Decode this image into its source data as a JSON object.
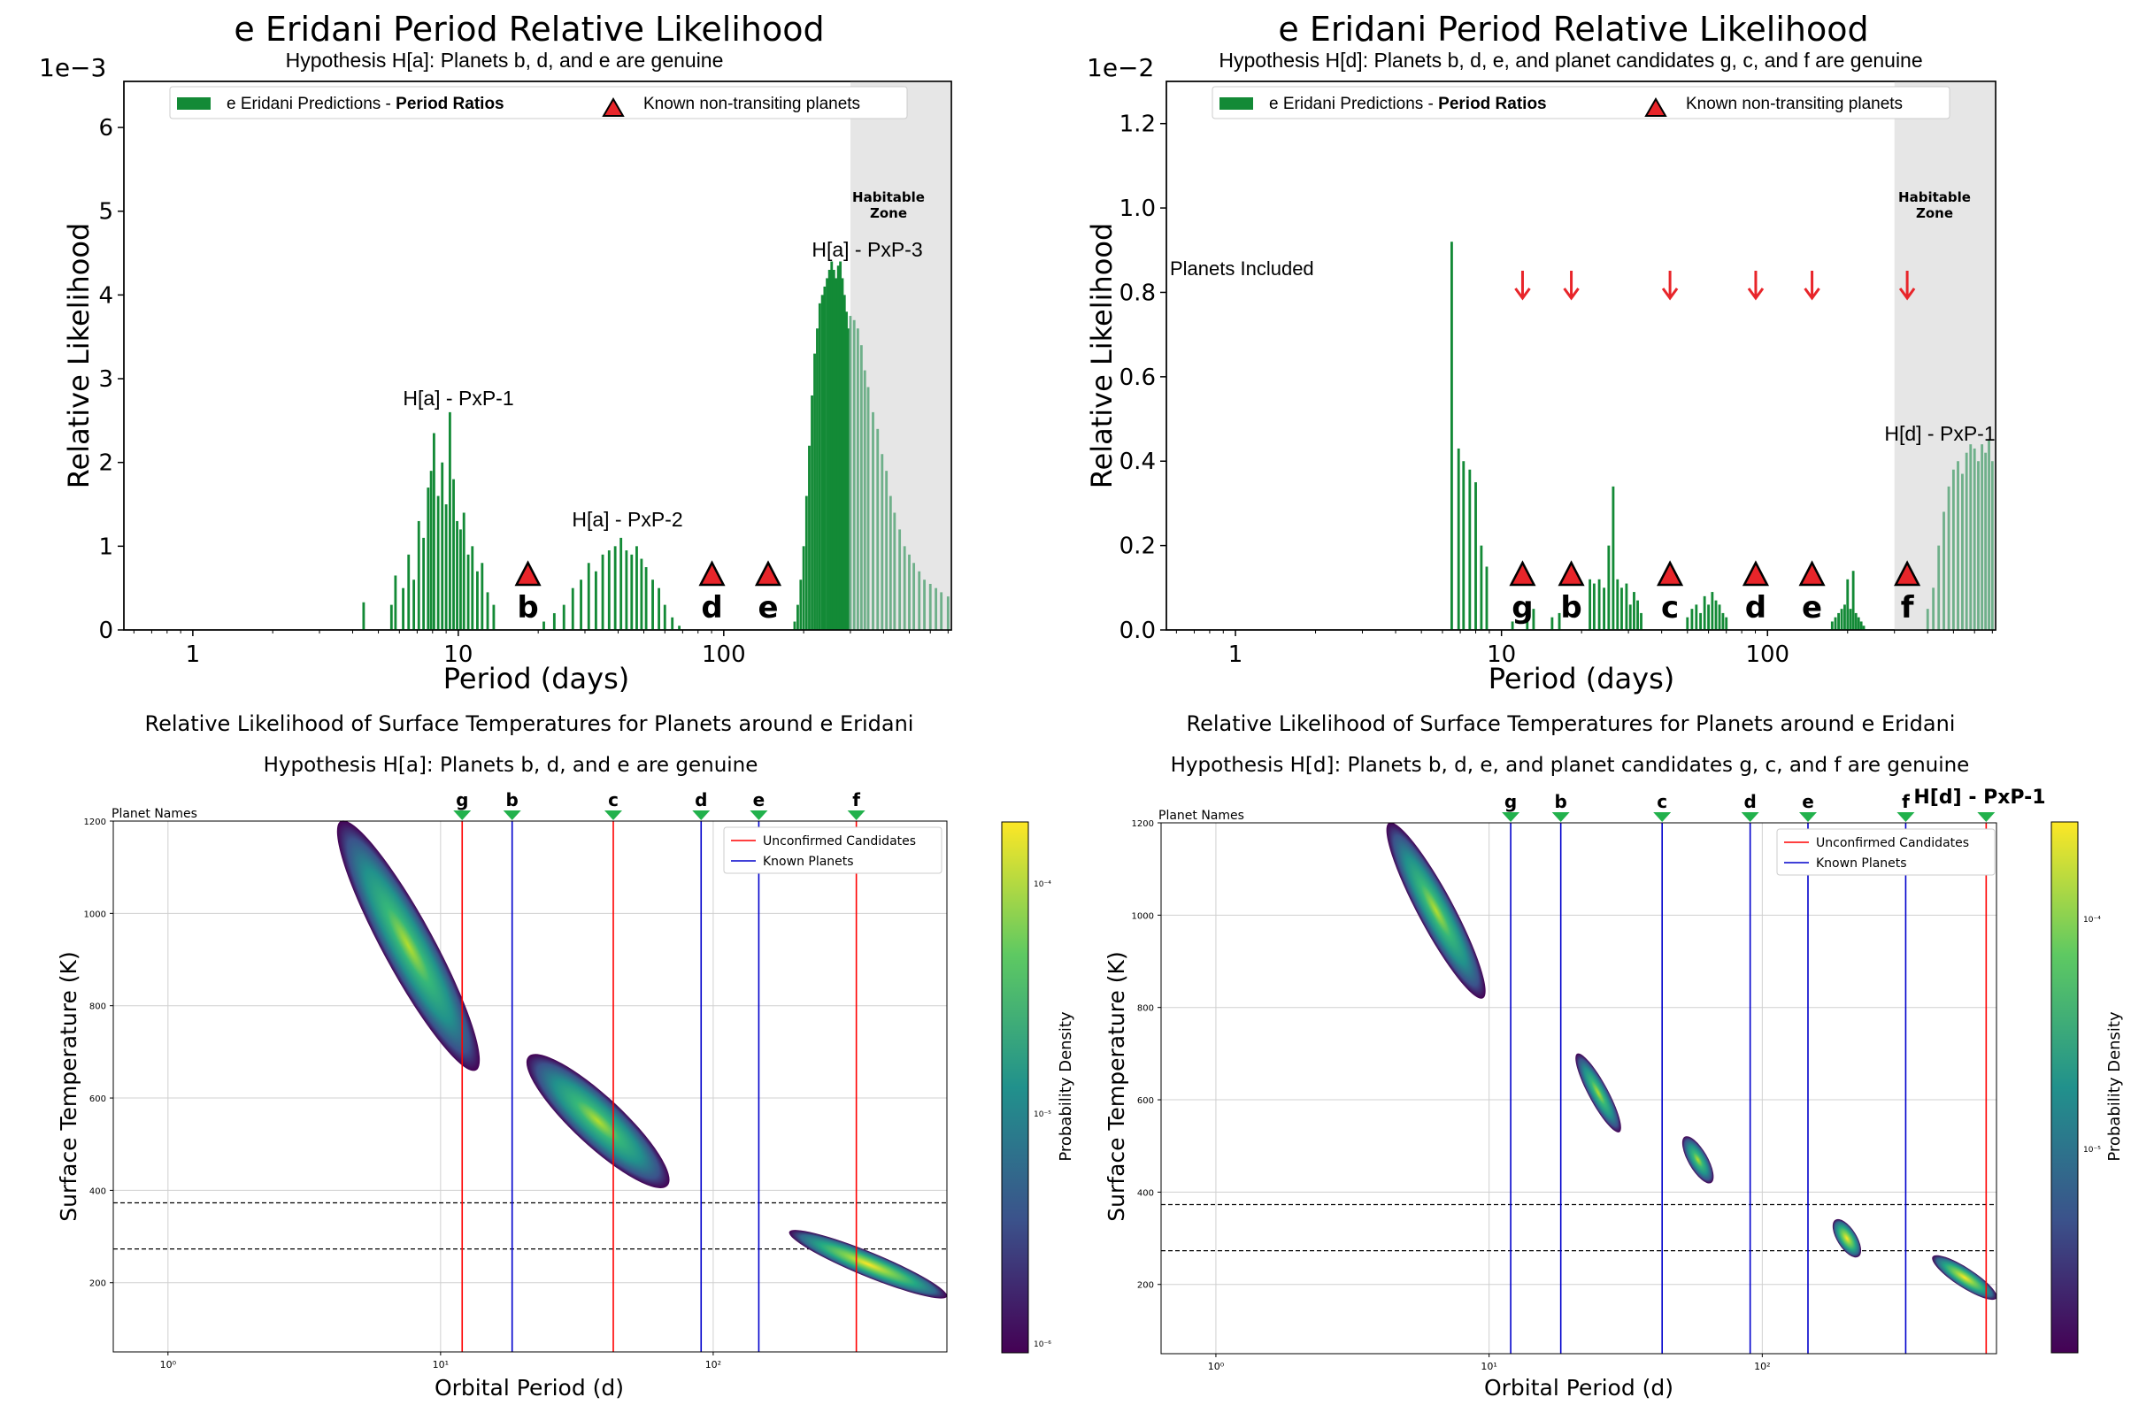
{
  "colors": {
    "bar_green": "#138a36",
    "bar_green_light": "#6fb08a",
    "hz_fill": "#e6e6e6",
    "triangle_red": "#e8252a",
    "arrow_red": "#e8252a",
    "candidate_line": "#ff0000",
    "known_line": "#0000cc",
    "name_marker_green": "#22b14c"
  },
  "top_charts": [
    {
      "title": "e Eridani Period Relative Likelihood",
      "subtitle": "Hypothesis H[a]: Planets b, d, and e are genuine",
      "scale_label": "1e−3",
      "xlabel": "Period (days)",
      "ylabel": "Relative Likelihood",
      "x_ticks": [
        "1",
        "10",
        "100"
      ],
      "y_ticks": [
        "0",
        "1",
        "2",
        "3",
        "4",
        "5",
        "6"
      ],
      "legend": {
        "entry1_prefix": "e Eridani  Predictions - ",
        "entry1_bold": "Period Ratios",
        "entry2": "Known non-transiting planets"
      },
      "hz_label_line1": "Habitable",
      "hz_label_line2": "Zone",
      "annotations": [
        "H[a] - PxP-1",
        "H[a] - PxP-2",
        "H[a] - PxP-3"
      ],
      "planets": [
        {
          "name": "b",
          "period": 18.3
        },
        {
          "name": "d",
          "period": 90.3
        },
        {
          "name": "e",
          "period": 147
        }
      ],
      "side_label": ""
    },
    {
      "title": "e Eridani Period Relative Likelihood",
      "subtitle": "Hypothesis H[d]: Planets b, d, e, and planet candidates g, c, and f are genuine",
      "scale_label": "1e−2",
      "xlabel": "Period (days)",
      "ylabel": "Relative Likelihood",
      "x_ticks": [
        "1",
        "10",
        "100"
      ],
      "y_ticks": [
        "0.0",
        "0.2",
        "0.4",
        "0.6",
        "0.8",
        "1.0",
        "1.2"
      ],
      "legend": {
        "entry1_prefix": "e Eridani  Predictions - ",
        "entry1_bold": "Period Ratios",
        "entry2": "Known non-transiting planets"
      },
      "hz_label_line1": "Habitable",
      "hz_label_line2": "Zone",
      "annotations": [
        "H[d] - PxP-1"
      ],
      "planets": [
        {
          "name": "g",
          "period": 12
        },
        {
          "name": "b",
          "period": 18.3
        },
        {
          "name": "c",
          "period": 43
        },
        {
          "name": "d",
          "period": 90.3
        },
        {
          "name": "e",
          "period": 147
        },
        {
          "name": "f",
          "period": 335
        }
      ],
      "side_label": "Planets Included"
    }
  ],
  "bottom_charts": [
    {
      "title": "Relative Likelihood of Surface Temperatures for Planets around e Eridani",
      "subtitle": "Hypothesis H[a]: Planets b, d, and e are genuine",
      "xlabel": "Orbital Period (d)",
      "ylabel": "Surface Temperature (K)",
      "colorbar_label": "Probability Density",
      "cbar_ticks": [
        "10⁻⁴",
        "10⁻⁵",
        "10⁻⁶"
      ],
      "planet_names_label": "Planet Names",
      "x_ticks": [
        "10⁰",
        "10¹",
        "10²"
      ],
      "y_ticks": [
        "200",
        "400",
        "600",
        "800",
        "1000",
        "1200"
      ],
      "legend": {
        "candidates": "Unconfirmed Candidates",
        "known": "Known Planets"
      },
      "extra_marker_label": "",
      "markers": [
        {
          "name": "g",
          "period": 12,
          "kind": "candidate"
        },
        {
          "name": "b",
          "period": 18.3,
          "kind": "known"
        },
        {
          "name": "c",
          "period": 43,
          "kind": "candidate"
        },
        {
          "name": "d",
          "period": 90.3,
          "kind": "known"
        },
        {
          "name": "e",
          "period": 147,
          "kind": "known"
        },
        {
          "name": "f",
          "period": 335,
          "kind": "candidate"
        }
      ],
      "hz_temps": [
        273,
        373
      ]
    },
    {
      "title": "Relative Likelihood of Surface Temperatures for Planets around e Eridani",
      "subtitle": "Hypothesis H[d]: Planets b, d, e, and planet candidates g, c, and f are genuine",
      "xlabel": "Orbital Period (d)",
      "ylabel": "Surface Temperature (K)",
      "colorbar_label": "Probability Density",
      "cbar_ticks": [
        "10⁻⁴",
        "10⁻⁵"
      ],
      "planet_names_label": "Planet Names",
      "x_ticks": [
        "10⁰",
        "10¹",
        "10²"
      ],
      "y_ticks": [
        "200",
        "400",
        "600",
        "800",
        "1000",
        "1200"
      ],
      "legend": {
        "candidates": "Unconfirmed Candidates",
        "known": "Known Planets"
      },
      "extra_marker_label": "H[d] - PxP-1",
      "markers": [
        {
          "name": "g",
          "period": 12,
          "kind": "known"
        },
        {
          "name": "b",
          "period": 18.3,
          "kind": "known"
        },
        {
          "name": "c",
          "period": 43,
          "kind": "known"
        },
        {
          "name": "d",
          "period": 90.3,
          "kind": "known"
        },
        {
          "name": "e",
          "period": 147,
          "kind": "known"
        },
        {
          "name": "f",
          "period": 335,
          "kind": "known"
        },
        {
          "name": "",
          "period": 660,
          "kind": "candidate"
        }
      ],
      "hz_temps": [
        273,
        373
      ]
    }
  ],
  "chart_data": [
    {
      "type": "bar",
      "title": "e Eridani Period Relative Likelihood",
      "xscale": "log",
      "xlim": [
        0.55,
        720
      ],
      "ylim": [
        0,
        6.55
      ],
      "y_multiplier": "1e-3",
      "habitable_zone": [
        300,
        720
      ],
      "x": [
        4.4,
        5.6,
        5.8,
        6.2,
        6.5,
        6.8,
        7.1,
        7.4,
        7.7,
        7.9,
        8.1,
        8.4,
        8.7,
        9.0,
        9.3,
        9.6,
        9.9,
        10.2,
        10.5,
        10.9,
        11.3,
        11.8,
        12.3,
        12.9,
        13.6,
        21,
        23,
        25,
        27,
        29,
        31,
        33,
        35,
        37,
        39,
        41,
        43,
        45,
        47,
        49,
        51,
        54,
        57,
        60,
        64,
        68,
        185,
        190,
        195,
        200,
        205,
        210,
        215,
        220,
        225,
        230,
        235,
        240,
        245,
        250,
        255,
        260,
        265,
        270,
        275,
        280,
        285,
        290,
        295,
        300,
        310,
        320,
        330,
        340,
        350,
        365,
        380,
        395,
        410,
        425,
        440,
        460,
        480,
        500,
        520,
        545,
        570,
        600,
        630,
        660,
        700
      ],
      "values": [
        0.33,
        0.3,
        0.65,
        0.5,
        0.9,
        0.6,
        1.3,
        1.1,
        1.7,
        1.9,
        2.35,
        1.6,
        2.0,
        1.5,
        2.6,
        1.8,
        1.3,
        1.2,
        1.4,
        0.9,
        1.0,
        0.7,
        0.8,
        0.45,
        0.3,
        0.1,
        0.2,
        0.3,
        0.5,
        0.6,
        0.8,
        0.7,
        0.9,
        0.95,
        1.0,
        1.1,
        0.95,
        0.9,
        1.0,
        0.85,
        0.75,
        0.6,
        0.5,
        0.3,
        0.15,
        0.05,
        0.1,
        0.3,
        0.6,
        1.0,
        1.6,
        2.2,
        2.8,
        3.3,
        3.6,
        3.9,
        4.0,
        4.1,
        4.2,
        4.3,
        4.4,
        4.3,
        4.2,
        4.35,
        4.4,
        4.2,
        4.0,
        3.8,
        3.6,
        3.75,
        3.7,
        3.6,
        3.4,
        3.1,
        2.9,
        2.6,
        2.4,
        2.1,
        1.9,
        1.6,
        1.4,
        1.2,
        1.0,
        0.9,
        0.8,
        0.7,
        0.6,
        0.55,
        0.5,
        0.45,
        0.4
      ]
    },
    {
      "type": "bar",
      "title": "e Eridani Period Relative Likelihood",
      "xscale": "log",
      "xlim": [
        0.55,
        720
      ],
      "ylim": [
        0,
        1.3
      ],
      "y_multiplier": "1e-2",
      "habitable_zone": [
        300,
        720
      ],
      "x": [
        6.5,
        6.9,
        7.2,
        7.6,
        8.0,
        8.4,
        8.8,
        11.0,
        12.5,
        13.2,
        15.5,
        16.5,
        21.5,
        22.3,
        23.3,
        24.3,
        25.3,
        26.3,
        27.3,
        28.3,
        29.5,
        30.5,
        31.5,
        32.5,
        33.5,
        50,
        52,
        54,
        56,
        58,
        60,
        62,
        64,
        66,
        68,
        70,
        175,
        180,
        185,
        190,
        195,
        200,
        205,
        210,
        215,
        220,
        225,
        230,
        400,
        420,
        440,
        460,
        480,
        500,
        520,
        540,
        560,
        580,
        600,
        620,
        640,
        660,
        680,
        700
      ],
      "values": [
        0.92,
        0.43,
        0.4,
        0.38,
        0.35,
        0.2,
        0.15,
        0.02,
        0.03,
        0.05,
        0.03,
        0.04,
        0.12,
        0.11,
        0.12,
        0.1,
        0.2,
        0.34,
        0.12,
        0.1,
        0.11,
        0.06,
        0.09,
        0.07,
        0.04,
        0.03,
        0.05,
        0.06,
        0.04,
        0.08,
        0.06,
        0.09,
        0.07,
        0.06,
        0.04,
        0.03,
        0.02,
        0.03,
        0.04,
        0.05,
        0.06,
        0.12,
        0.05,
        0.14,
        0.04,
        0.03,
        0.02,
        0.01,
        0.05,
        0.1,
        0.2,
        0.28,
        0.34,
        0.38,
        0.4,
        0.37,
        0.42,
        0.44,
        0.43,
        0.4,
        0.44,
        0.42,
        0.45,
        0.4
      ]
    },
    {
      "type": "heatmap",
      "title": "Relative Likelihood of Surface Temperatures for Planets around e Eridani",
      "xscale": "log",
      "xlim": [
        0.63,
        720
      ],
      "ylim": [
        50,
        1200
      ],
      "clusters": [
        {
          "period_range": [
            4.3,
            13.5
          ],
          "temp_range": [
            660,
            1200
          ]
        },
        {
          "period_range": [
            21,
            68
          ],
          "temp_range": [
            410,
            690
          ]
        },
        {
          "period_range": [
            190,
            720
          ],
          "temp_range": [
            170,
            310
          ]
        }
      ],
      "candidate_periods": [
        12,
        43,
        335
      ],
      "known_periods": [
        18.3,
        90.3,
        147
      ]
    },
    {
      "type": "heatmap",
      "title": "Relative Likelihood of Surface Temperatures for Planets around e Eridani",
      "xscale": "log",
      "xlim": [
        0.63,
        720
      ],
      "ylim": [
        50,
        1200
      ],
      "clusters": [
        {
          "period_range": [
            4.3,
            9.5
          ],
          "temp_range": [
            820,
            1200
          ]
        },
        {
          "period_range": [
            21,
            30
          ],
          "temp_range": [
            530,
            700
          ]
        },
        {
          "period_range": [
            52,
            65
          ],
          "temp_range": [
            420,
            520
          ]
        },
        {
          "period_range": [
            185,
            225
          ],
          "temp_range": [
            260,
            340
          ]
        },
        {
          "period_range": [
            420,
            720
          ],
          "temp_range": [
            170,
            260
          ]
        }
      ],
      "candidate_periods": [
        660
      ],
      "known_periods": [
        12,
        18.3,
        43,
        90.3,
        147,
        335
      ]
    }
  ]
}
